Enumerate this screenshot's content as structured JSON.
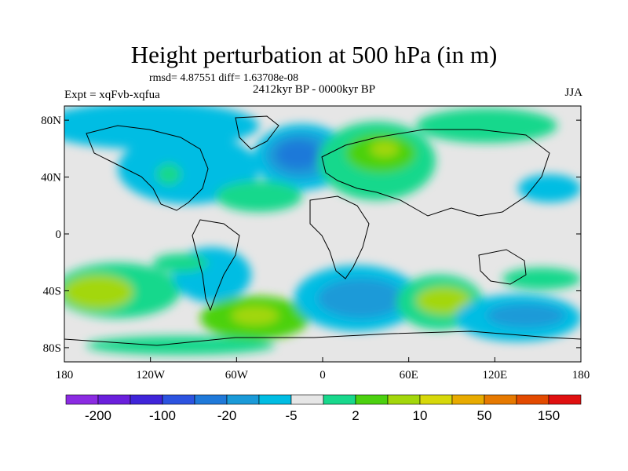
{
  "header": {
    "title": "Height perturbation at 500 hPa (in m)",
    "stats": "rmsd= 4.87551 diff= 1.63708e-08",
    "period": "2412kyr BP - 0000kyr BP",
    "experiment": "Expt = xqFvb-xqfua",
    "season": "JJA"
  },
  "map": {
    "projection": "cylindrical-equidistant",
    "lon_range": [
      -180,
      180
    ],
    "lat_range": [
      -90,
      90
    ],
    "lat_ticks": [
      {
        "value": 80,
        "label": "80N"
      },
      {
        "value": 40,
        "label": "40N"
      },
      {
        "value": 0,
        "label": "0"
      },
      {
        "value": -40,
        "label": "40S"
      },
      {
        "value": -80,
        "label": "80S"
      }
    ],
    "lon_ticks": [
      {
        "value": -180,
        "label": "180"
      },
      {
        "value": -120,
        "label": "120W"
      },
      {
        "value": -60,
        "label": "60W"
      },
      {
        "value": 0,
        "label": "0"
      },
      {
        "value": 60,
        "label": "60E"
      },
      {
        "value": 120,
        "label": "120E"
      },
      {
        "value": 180,
        "label": "180"
      }
    ],
    "background_color": "#e6e6e6",
    "coastline_color": "#000000"
  },
  "colorbar": {
    "colors": [
      "#8b2be2",
      "#6a1fdc",
      "#3f24d9",
      "#2c53e0",
      "#1f79d9",
      "#1a9ad8",
      "#00bde3",
      "#e6e6e6",
      "#18d88c",
      "#4cd10f",
      "#a3d70b",
      "#d7d80a",
      "#e8ab00",
      "#e67900",
      "#e34a00",
      "#e01010"
    ],
    "labels": [
      {
        "after_box": 1,
        "text": "-200"
      },
      {
        "after_box": 3,
        "text": "-100"
      },
      {
        "after_box": 5,
        "text": "-20"
      },
      {
        "after_box": 7,
        "text": "-5"
      },
      {
        "after_box": 9,
        "text": "2"
      },
      {
        "after_box": 11,
        "text": "10"
      },
      {
        "after_box": 13,
        "text": "50"
      },
      {
        "after_box": 15,
        "text": "150"
      }
    ]
  }
}
